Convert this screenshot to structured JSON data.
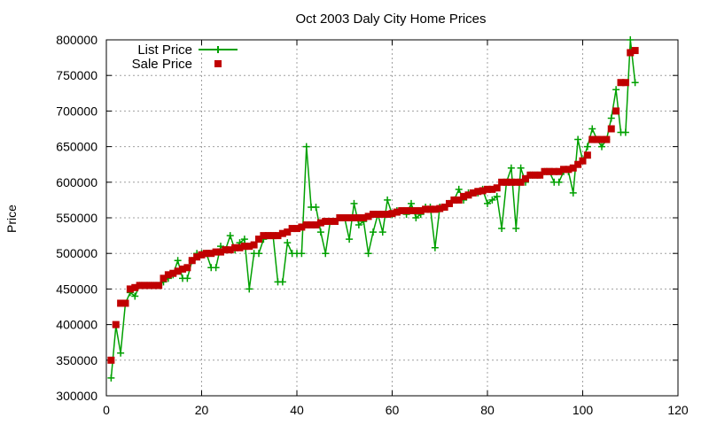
{
  "chart_data": {
    "type": "line",
    "title": "Oct 2003 Daly City Home Prices",
    "xlabel": "",
    "ylabel": "Price",
    "xlim": [
      0,
      120
    ],
    "ylim": [
      300000,
      800000
    ],
    "x_ticks": [
      0,
      20,
      40,
      60,
      80,
      100,
      120
    ],
    "y_ticks": [
      300000,
      350000,
      400000,
      450000,
      500000,
      550000,
      600000,
      650000,
      700000,
      750000,
      800000
    ],
    "grid": true,
    "legend_position": "top-left",
    "colors": {
      "list": "#00a000",
      "sale": "#c00000"
    },
    "series": [
      {
        "name": "List Price",
        "style": "line-plus",
        "x": [
          1,
          2,
          3,
          4,
          5,
          6,
          7,
          8,
          9,
          10,
          11,
          12,
          13,
          14,
          15,
          16,
          17,
          18,
          19,
          20,
          21,
          22,
          23,
          24,
          25,
          26,
          27,
          28,
          29,
          30,
          31,
          32,
          33,
          34,
          35,
          36,
          37,
          38,
          39,
          40,
          41,
          42,
          43,
          44,
          45,
          46,
          47,
          48,
          49,
          50,
          51,
          52,
          53,
          54,
          55,
          56,
          57,
          58,
          59,
          60,
          61,
          62,
          63,
          64,
          65,
          66,
          67,
          68,
          69,
          70,
          71,
          72,
          73,
          74,
          75,
          76,
          77,
          78,
          79,
          80,
          81,
          82,
          83,
          84,
          85,
          86,
          87,
          88,
          89,
          90,
          91,
          92,
          93,
          94,
          95,
          96,
          97,
          98,
          99,
          100,
          101,
          102,
          103,
          104,
          105,
          106,
          107,
          108,
          109,
          110,
          111
        ],
        "y": [
          325000,
          398000,
          360000,
          430000,
          445000,
          440000,
          455000,
          455000,
          455000,
          455000,
          455000,
          460000,
          465000,
          470000,
          490000,
          465000,
          465000,
          490000,
          500000,
          500000,
          500000,
          480000,
          480000,
          510000,
          505000,
          525000,
          505000,
          515000,
          520000,
          450000,
          500000,
          500000,
          520000,
          525000,
          525000,
          460000,
          460000,
          515000,
          500000,
          500000,
          500000,
          650000,
          565000,
          565000,
          530000,
          500000,
          545000,
          545000,
          550000,
          550000,
          520000,
          570000,
          540000,
          545000,
          500000,
          530000,
          555000,
          530000,
          575000,
          555000,
          560000,
          560000,
          555000,
          570000,
          550000,
          555000,
          565000,
          565000,
          508000,
          565000,
          565000,
          570000,
          575000,
          590000,
          575000,
          585000,
          585000,
          585000,
          590000,
          570000,
          575000,
          580000,
          535000,
          600000,
          620000,
          535000,
          620000,
          600000,
          610000,
          610000,
          610000,
          615000,
          615000,
          600000,
          600000,
          615000,
          615000,
          585000,
          660000,
          630000,
          650000,
          675000,
          660000,
          650000,
          660000,
          690000,
          730000,
          670000,
          670000,
          800000,
          740000
        ]
      },
      {
        "name": "Sale Price",
        "style": "square-points",
        "x": [
          1,
          2,
          3,
          4,
          5,
          6,
          7,
          8,
          9,
          10,
          11,
          12,
          13,
          14,
          15,
          16,
          17,
          18,
          19,
          20,
          21,
          22,
          23,
          24,
          25,
          26,
          27,
          28,
          29,
          30,
          31,
          32,
          33,
          34,
          35,
          36,
          37,
          38,
          39,
          40,
          41,
          42,
          43,
          44,
          45,
          46,
          47,
          48,
          49,
          50,
          51,
          52,
          53,
          54,
          55,
          56,
          57,
          58,
          59,
          60,
          61,
          62,
          63,
          64,
          65,
          66,
          67,
          68,
          69,
          70,
          71,
          72,
          73,
          74,
          75,
          76,
          77,
          78,
          79,
          80,
          81,
          82,
          83,
          84,
          85,
          86,
          87,
          88,
          89,
          90,
          91,
          92,
          93,
          94,
          95,
          96,
          97,
          98,
          99,
          100,
          101,
          102,
          103,
          104,
          105,
          106,
          107,
          108,
          109,
          110,
          111
        ],
        "y": [
          350000,
          400000,
          430000,
          430000,
          450000,
          452000,
          455000,
          455000,
          455000,
          455000,
          455000,
          465000,
          470000,
          472000,
          475000,
          478000,
          480000,
          490000,
          495000,
          498000,
          500000,
          500000,
          502000,
          502000,
          505000,
          505000,
          508000,
          508000,
          510000,
          510000,
          512000,
          520000,
          525000,
          525000,
          525000,
          525000,
          528000,
          530000,
          535000,
          535000,
          537000,
          540000,
          540000,
          540000,
          543000,
          545000,
          545000,
          545000,
          550000,
          550000,
          550000,
          550000,
          550000,
          550000,
          552000,
          555000,
          555000,
          555000,
          555000,
          556000,
          558000,
          560000,
          560000,
          560000,
          560000,
          560000,
          562000,
          562000,
          562000,
          563000,
          565000,
          570000,
          575000,
          575000,
          580000,
          582000,
          585000,
          587000,
          588000,
          590000,
          590000,
          592000,
          600000,
          600000,
          600000,
          600000,
          600000,
          605000,
          610000,
          610000,
          610000,
          615000,
          615000,
          615000,
          615000,
          618000,
          618000,
          620000,
          625000,
          630000,
          638000,
          660000,
          660000,
          660000,
          660000,
          675000,
          700000,
          740000,
          740000,
          782000,
          785000
        ]
      }
    ]
  }
}
